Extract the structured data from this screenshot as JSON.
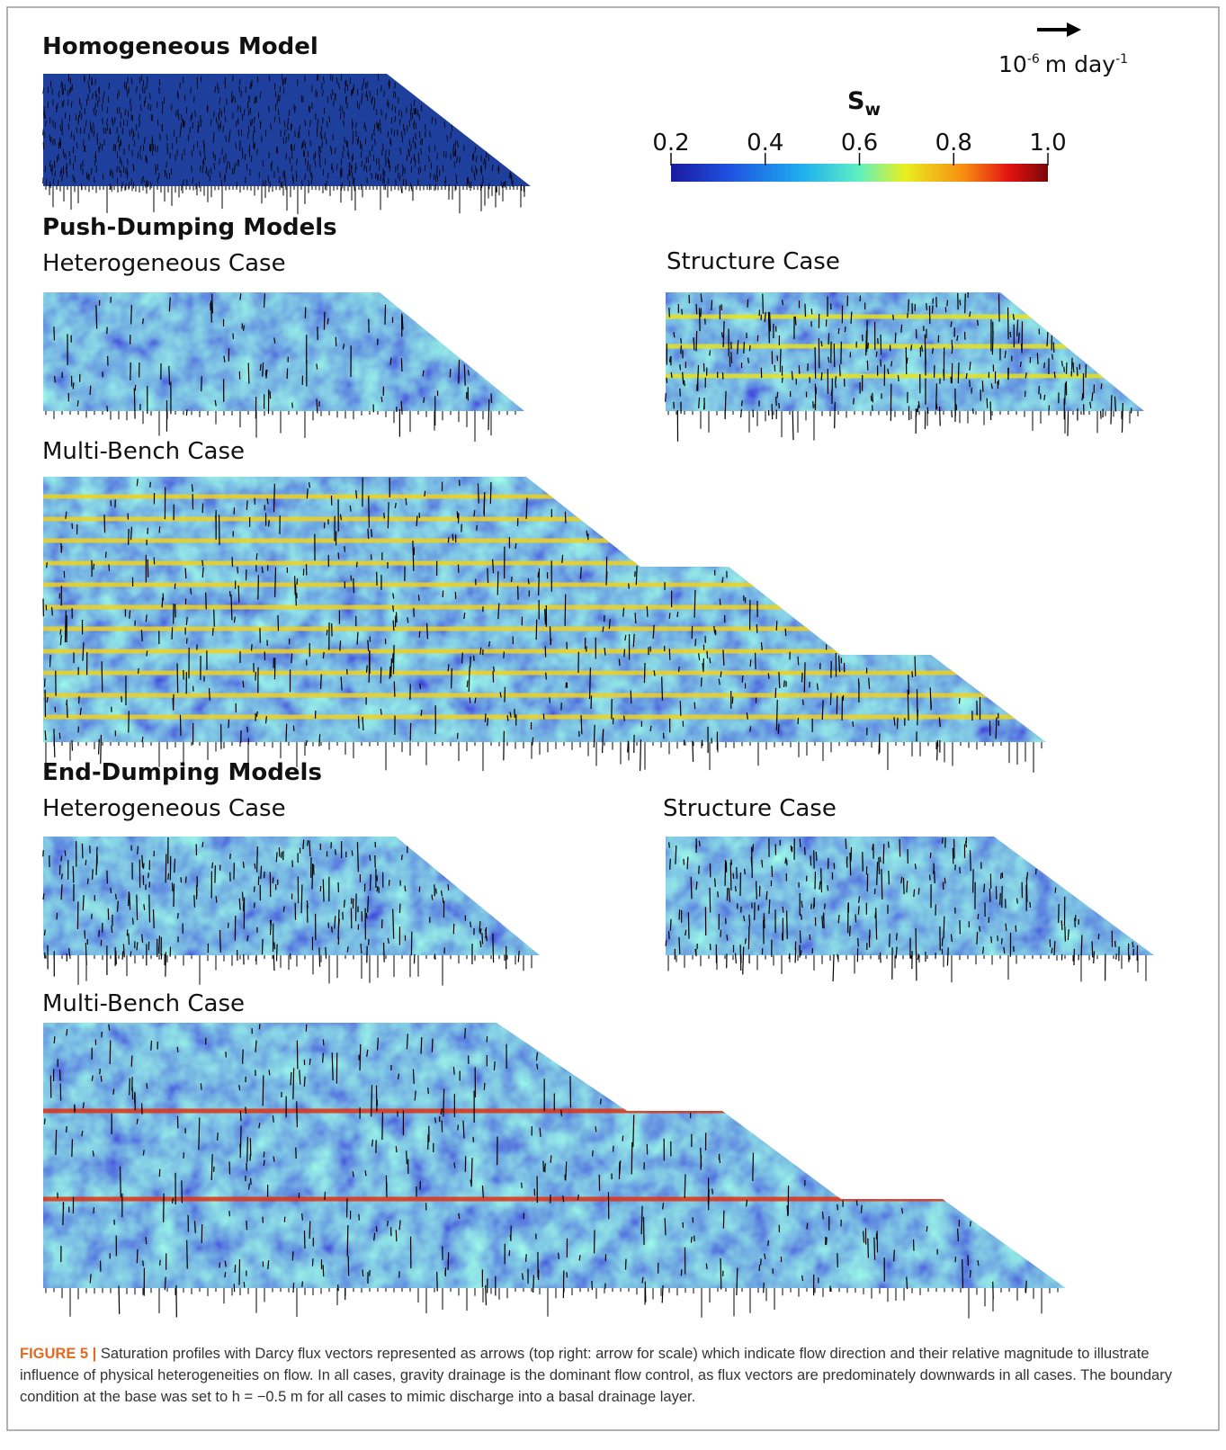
{
  "figure": {
    "scale_arrow": {
      "base": "10",
      "exponent": "-6",
      "unit": "m day",
      "unit_exponent": "-1"
    },
    "colorbar": {
      "symbol": "S",
      "subscript": "w",
      "lim": [
        0.2,
        1.0
      ],
      "ticks": [
        0.2,
        0.4,
        0.6,
        0.8,
        {
          "value": 1.0,
          "label": "1.0"
        }
      ]
    },
    "panels": {
      "homogeneous": "Homogeneous Model",
      "push_dumping": {
        "title": "Push-Dumping Models",
        "heterogeneous": "Heterogeneous Case",
        "structure": "Structure Case",
        "multi_bench": "Multi-Bench Case"
      },
      "end_dumping": {
        "title": "End-Dumping Models",
        "heterogeneous": "Heterogeneous Case",
        "structure": "Structure Case",
        "multi_bench": "Multi-Bench Case"
      }
    }
  },
  "caption": {
    "label": "FIGURE 5 |",
    "text": "Saturation profiles with Darcy flux vectors represented as arrows (top right: arrow for scale) which indicate flow direction and their relative magnitude to illustrate influence of physical heterogeneities on flow. In all cases, gravity drainage is the dominant flow control, as flux vectors are predominately downwards in all cases. The boundary condition at the base was set to h = −0.5 m for all cases to mimic discharge into a basal drainage layer."
  }
}
